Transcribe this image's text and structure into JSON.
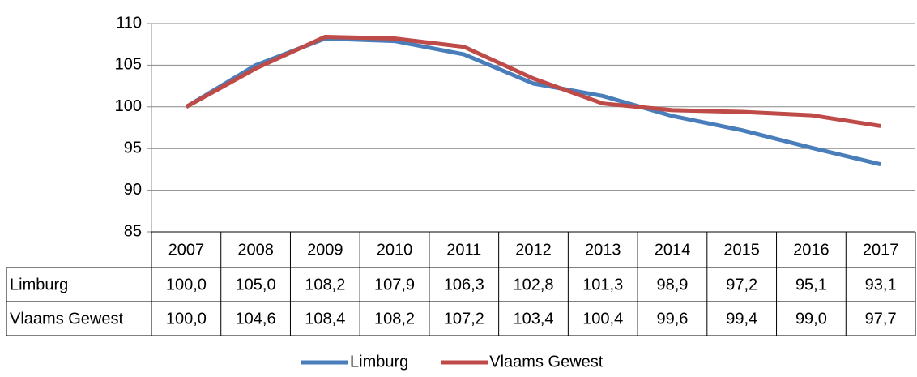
{
  "chart_data": {
    "type": "line",
    "categories": [
      "2007",
      "2008",
      "2009",
      "2010",
      "2011",
      "2012",
      "2013",
      "2014",
      "2015",
      "2016",
      "2017"
    ],
    "series": [
      {
        "name": "Limburg",
        "color": "#4a7ebb",
        "values": [
          100.0,
          105.0,
          108.2,
          107.9,
          106.3,
          102.8,
          101.3,
          98.9,
          97.2,
          95.1,
          93.1
        ],
        "value_labels": [
          "100,0",
          "105,0",
          "108,2",
          "107,9",
          "106,3",
          "102,8",
          "101,3",
          "98,9",
          "97,2",
          "95,1",
          "93,1"
        ]
      },
      {
        "name": "Vlaams Gewest",
        "color": "#be4b48",
        "values": [
          100.0,
          104.6,
          108.4,
          108.2,
          107.2,
          103.4,
          100.4,
          99.6,
          99.4,
          99.0,
          97.7
        ],
        "value_labels": [
          "100,0",
          "104,6",
          "108,4",
          "108,2",
          "107,2",
          "103,4",
          "100,4",
          "99,6",
          "99,4",
          "99,0",
          "97,7"
        ]
      }
    ],
    "ylim": [
      85,
      110
    ],
    "yticks": [
      85,
      90,
      95,
      100,
      105,
      110
    ],
    "grid": true,
    "legend": "bottom"
  }
}
